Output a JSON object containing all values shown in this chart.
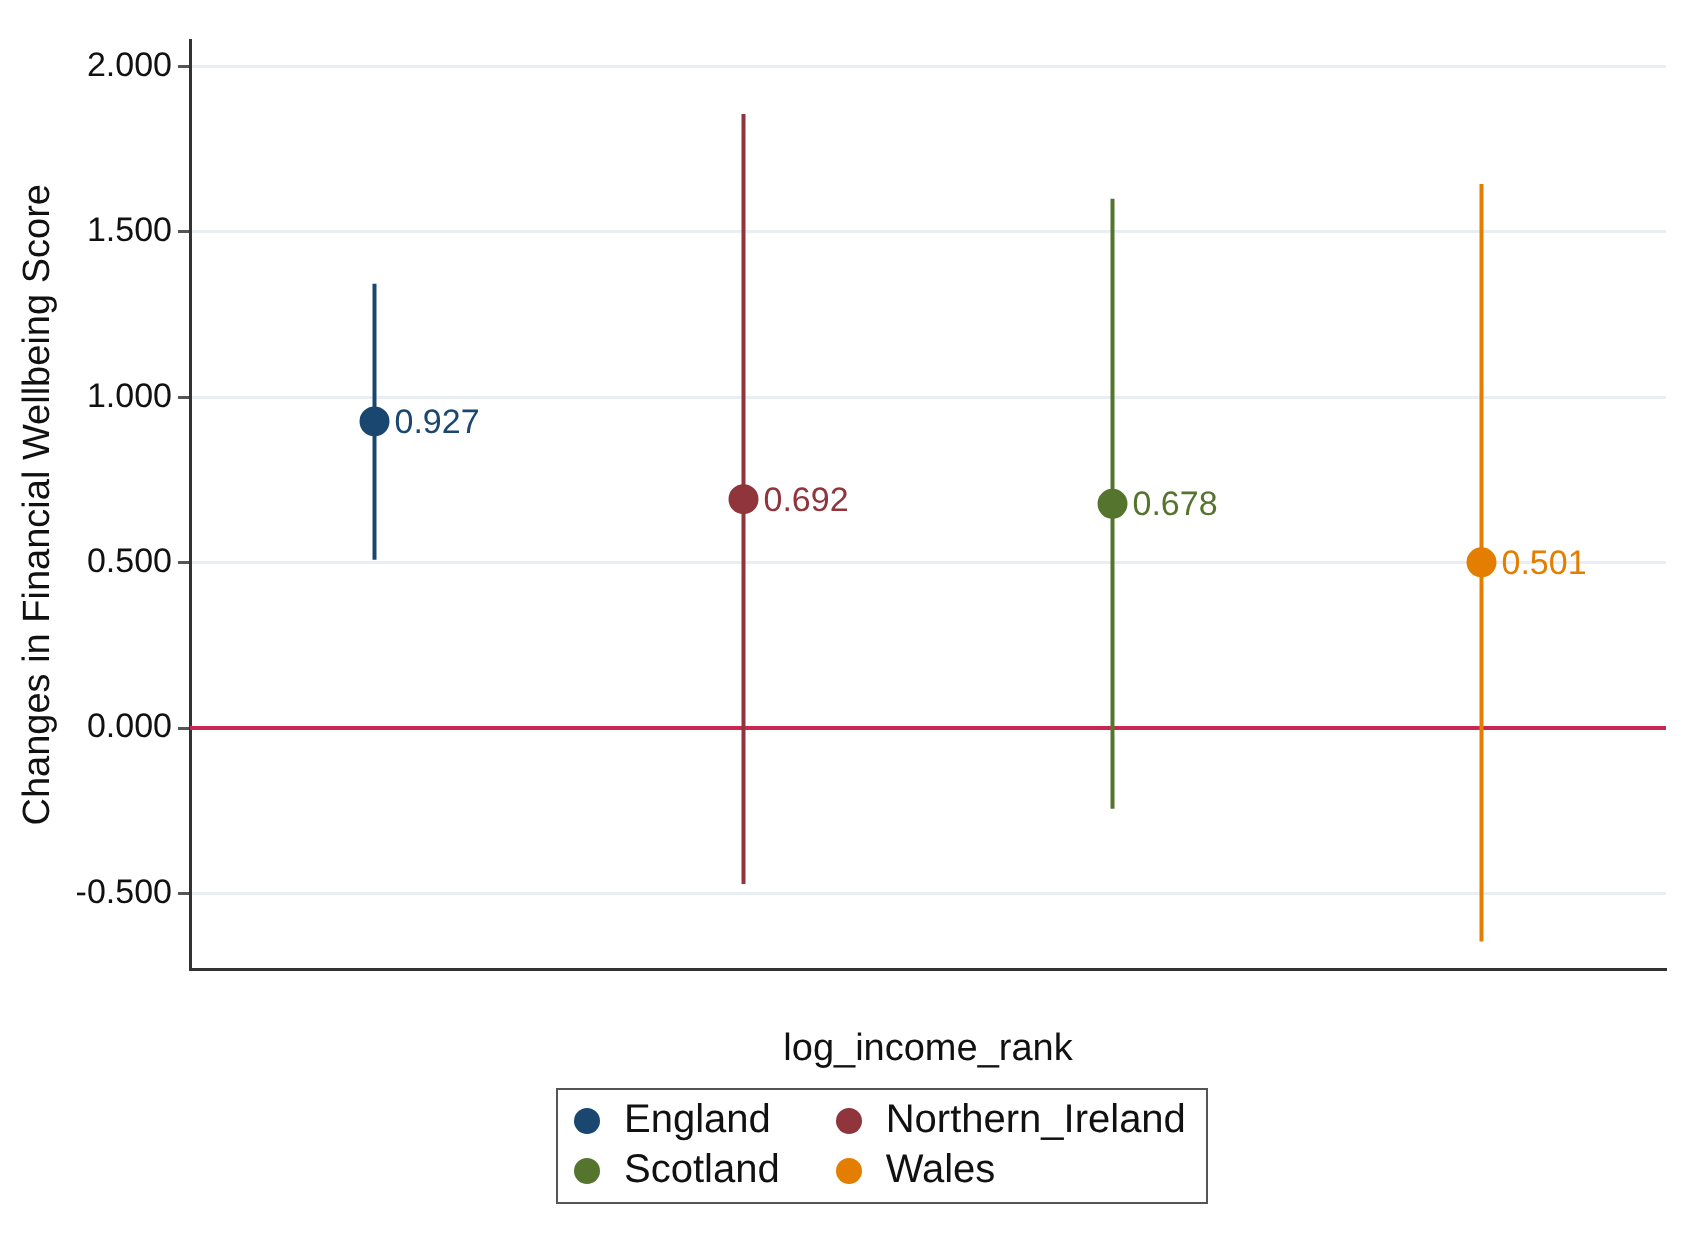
{
  "chart_data": {
    "type": "scatter",
    "ylabel": "Changes in Financial Wellbeing Score",
    "xlabel": "log_income_rank",
    "categories": [
      null,
      null,
      null,
      null
    ],
    "ylim": [
      -0.73,
      2.08
    ],
    "yticks": [
      {
        "value": -0.5,
        "label": "-0.500"
      },
      {
        "value": 0,
        "label": "0.000"
      },
      {
        "value": 0.5,
        "label": "0.500"
      },
      {
        "value": 1,
        "label": "1.000"
      },
      {
        "value": 1.5,
        "label": "1.500"
      },
      {
        "value": 2,
        "label": "2.000"
      }
    ],
    "series": [
      {
        "name": "England",
        "color": "#1a476f",
        "values": [
          0.927,
          null,
          null,
          null
        ],
        "errors": [
          [
            0.509,
            1.343
          ],
          null,
          null,
          null
        ]
      },
      {
        "name": "Northern_Ireland",
        "color": "#90353b",
        "values": [
          null,
          0.692,
          null,
          null
        ],
        "errors": [
          null,
          [
            -0.471,
            1.856
          ],
          null,
          null
        ]
      },
      {
        "name": "Scotland",
        "color": "#55752f",
        "values": [
          null,
          null,
          0.678,
          null
        ],
        "errors": [
          null,
          null,
          [
            -0.244,
            1.6
          ],
          null
        ]
      },
      {
        "name": "Wales",
        "color": "#e37e00",
        "values": [
          null,
          null,
          null,
          0.501
        ],
        "errors": [
          null,
          null,
          null,
          [
            -0.645,
            1.645
          ]
        ]
      }
    ],
    "ref_lines": [
      {
        "axis": "y",
        "value": 0,
        "color": "#c8284f"
      }
    ],
    "data_labels": true,
    "grid": "y",
    "legend": "bottom",
    "marker": "circle"
  }
}
